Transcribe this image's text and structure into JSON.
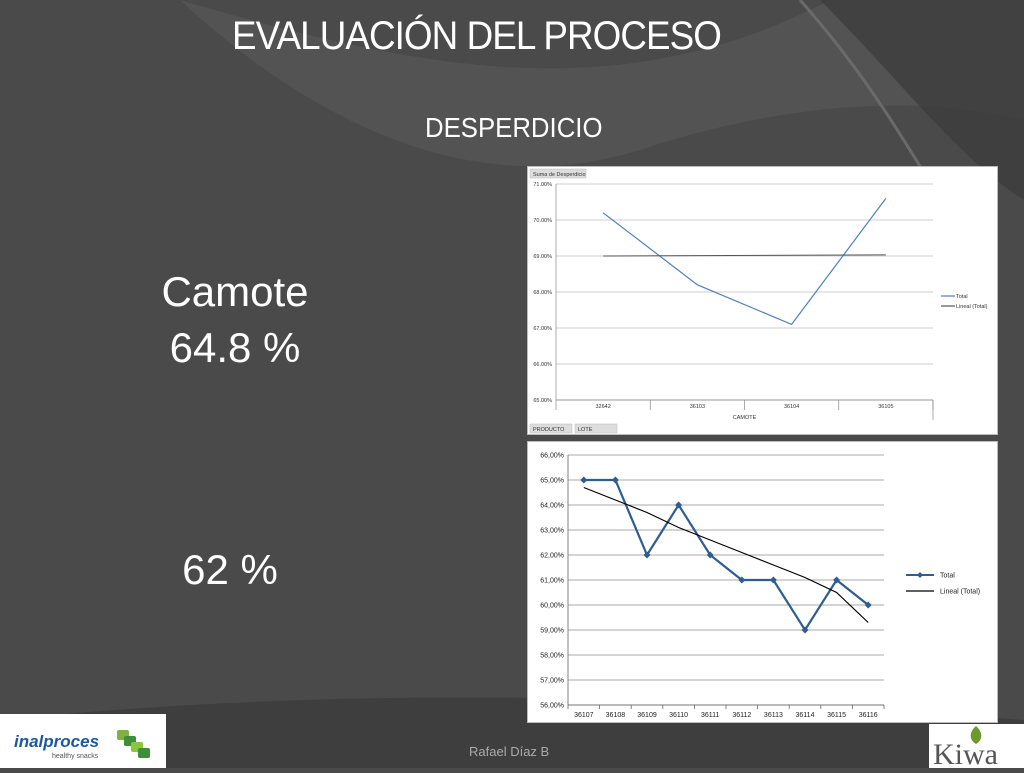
{
  "slide": {
    "title": "EVALUACIÓN DEL PROCESO",
    "subtitle": "DESPERDICIO",
    "camote_label": "Camote",
    "camote_value": "64.8 %",
    "second_value": "62 %",
    "footer": "Rafael Díaz B"
  },
  "logos": {
    "left_text": "inalproces",
    "left_sub": "healthy snacks",
    "right_text": "Kiwa"
  },
  "colors": {
    "background": "#4a4a4a",
    "series_total": "#4f81bd",
    "series_total_dark": "#2e5d8e",
    "trend": "#000000"
  },
  "chart_data": [
    {
      "type": "line",
      "pivot_button": "Suma de Desperdicio",
      "filter_buttons": [
        "PRODUCTO",
        "LOTE"
      ],
      "categories": [
        "32642",
        "36103",
        "36104",
        "36105"
      ],
      "xlabel": "CAMOTE",
      "ylim": [
        65.0,
        71.0
      ],
      "yticks": [
        "65.00%",
        "66.00%",
        "67.00%",
        "68.00%",
        "69.00%",
        "70.00%",
        "71.00%"
      ],
      "series": [
        {
          "name": "Total",
          "values": [
            70.2,
            68.2,
            67.1,
            70.6
          ]
        },
        {
          "name": "Lineal (Total)",
          "values": [
            69.0,
            69.01,
            69.02,
            69.03
          ]
        }
      ],
      "grid": true,
      "legend": "right"
    },
    {
      "type": "line",
      "categories": [
        "36107",
        "36108",
        "36109",
        "36110",
        "36111",
        "36112",
        "36113",
        "36114",
        "36115",
        "36116"
      ],
      "ylim": [
        56.0,
        66.0
      ],
      "yticks": [
        "56,00%",
        "57,00%",
        "58,00%",
        "59,00%",
        "60,00%",
        "61,00%",
        "62,00%",
        "63,00%",
        "64,00%",
        "65,00%",
        "66,00%"
      ],
      "series": [
        {
          "name": "Total",
          "values": [
            65,
            65,
            62,
            64,
            62,
            61,
            61,
            59,
            61,
            60
          ]
        },
        {
          "name": "Lineal (Total)",
          "values": [
            64.7,
            64.2,
            63.7,
            63.1,
            62.6,
            62.1,
            61.6,
            61.1,
            60.5,
            59.3
          ]
        }
      ],
      "grid": true,
      "legend": "right"
    }
  ]
}
